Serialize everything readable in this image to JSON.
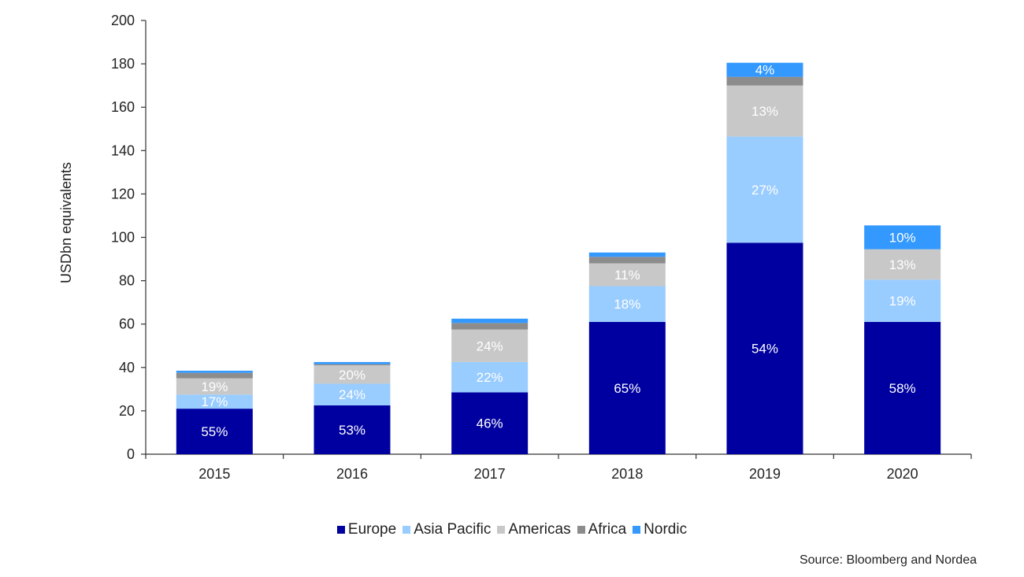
{
  "chart_data": {
    "type": "bar",
    "stacked": true,
    "categories": [
      "2015",
      "2016",
      "2017",
      "2018",
      "2019",
      "2020"
    ],
    "ylabel": "USDbn equivalents",
    "ylim": [
      0,
      200
    ],
    "yticks": [
      "0",
      "20",
      "40",
      "60",
      "80",
      "100",
      "120",
      "140",
      "160",
      "180",
      "200"
    ],
    "grid": false,
    "legend_position": "bottom-center",
    "series": [
      {
        "name": "Europe",
        "color": "#0000a0",
        "values": [
          21,
          22.5,
          28.5,
          61,
          97.5,
          61
        ],
        "labels": [
          "55%",
          "53%",
          "46%",
          "65%",
          "54%",
          "58%"
        ]
      },
      {
        "name": "Asia Pacific",
        "color": "#99ccff",
        "values": [
          6.5,
          10,
          14,
          16.5,
          49,
          19.5
        ],
        "labels": [
          "17%",
          "24%",
          "22%",
          "18%",
          "27%",
          "19%"
        ]
      },
      {
        "name": "Americas",
        "color": "#c8c8c8",
        "values": [
          7.5,
          8.5,
          15,
          10.5,
          23.5,
          14
        ],
        "labels": [
          "19%",
          "20%",
          "24%",
          "11%",
          "13%",
          "13%"
        ]
      },
      {
        "name": "Africa",
        "color": "#8c8c8c",
        "values": [
          2.5,
          0.5,
          3,
          3,
          4,
          0
        ],
        "labels": [
          "",
          "",
          "",
          "",
          "",
          ""
        ]
      },
      {
        "name": "Nordic",
        "color": "#3399ff",
        "values": [
          1,
          1,
          2,
          2,
          6.5,
          11
        ],
        "labels": [
          "",
          "",
          "",
          "",
          "4%",
          "10%"
        ]
      }
    ]
  },
  "source": "Source: Bloomberg and Nordea"
}
